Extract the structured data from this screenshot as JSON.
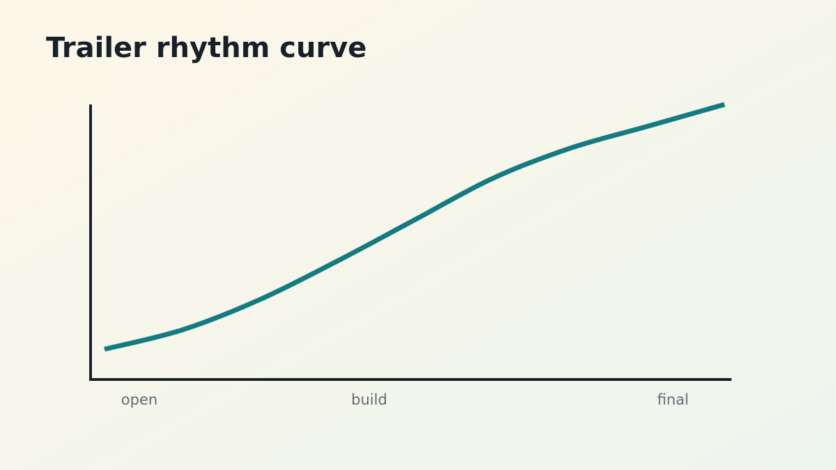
{
  "chart_data": {
    "type": "line",
    "title": "Trailer rhythm curve",
    "x_labels": [
      "open",
      "build",
      "final"
    ],
    "values": [
      11,
      18,
      29,
      43,
      58,
      73,
      84,
      92,
      100
    ],
    "color": "#147b80",
    "ylim": [
      0,
      100
    ]
  }
}
